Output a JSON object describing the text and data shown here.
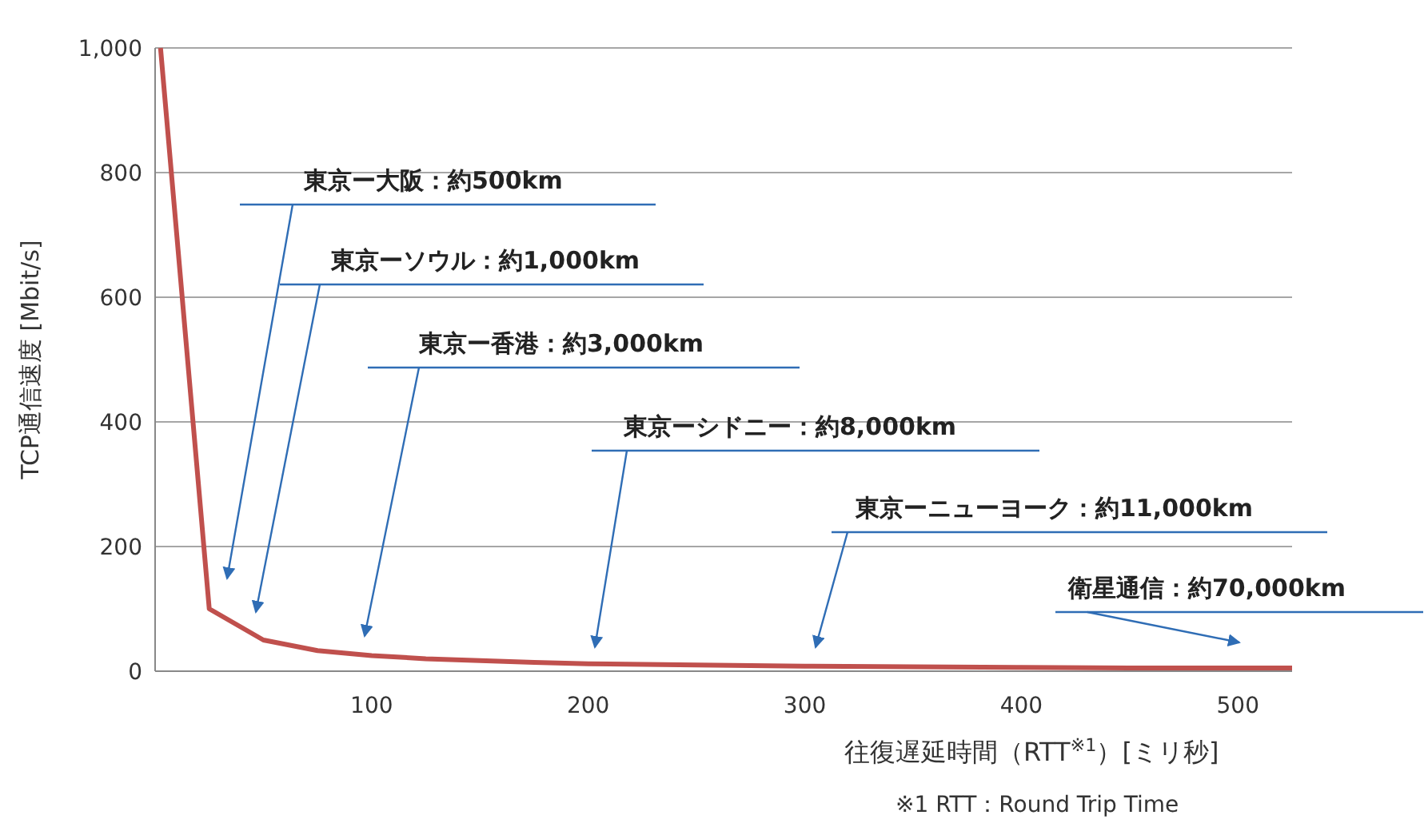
{
  "chart_data": {
    "type": "line",
    "xlabel": "往復遅延時間（RTT$^{※1}$）[ミリ秒]",
    "ylabel": "TCP通信速度 [Mbit/s]",
    "x": [
      2.5,
      25,
      50,
      75,
      100,
      125,
      150,
      175,
      200,
      250,
      300,
      350,
      400,
      450,
      500,
      525
    ],
    "series": [
      {
        "color": "#c0504d",
        "values": [
          1000,
          100,
          50,
          33,
          25,
          20,
          17,
          14,
          12,
          10,
          8,
          7,
          6,
          5,
          5,
          5
        ]
      }
    ],
    "xlim": [
      0,
      525
    ],
    "xticks": [
      100,
      200,
      300,
      400,
      500
    ],
    "ylim": [
      0,
      1000
    ],
    "yticks": [
      0,
      200,
      400,
      600,
      800,
      {
        "value": 1000,
        "label": "1,000"
      }
    ],
    "grid": "y",
    "marker": "none",
    "line_style": "solid",
    "annotations": [
      "東京ー大阪：約500km",
      "東京ーソウル：約1,000km",
      "東京ー香港：約3,000km",
      "東京ーシドニー：約8,000km",
      "東京ーニューヨーク：約11,000km",
      "衛星通信：約70,000km",
      "※1  RTT：Round Trip Time"
    ]
  }
}
